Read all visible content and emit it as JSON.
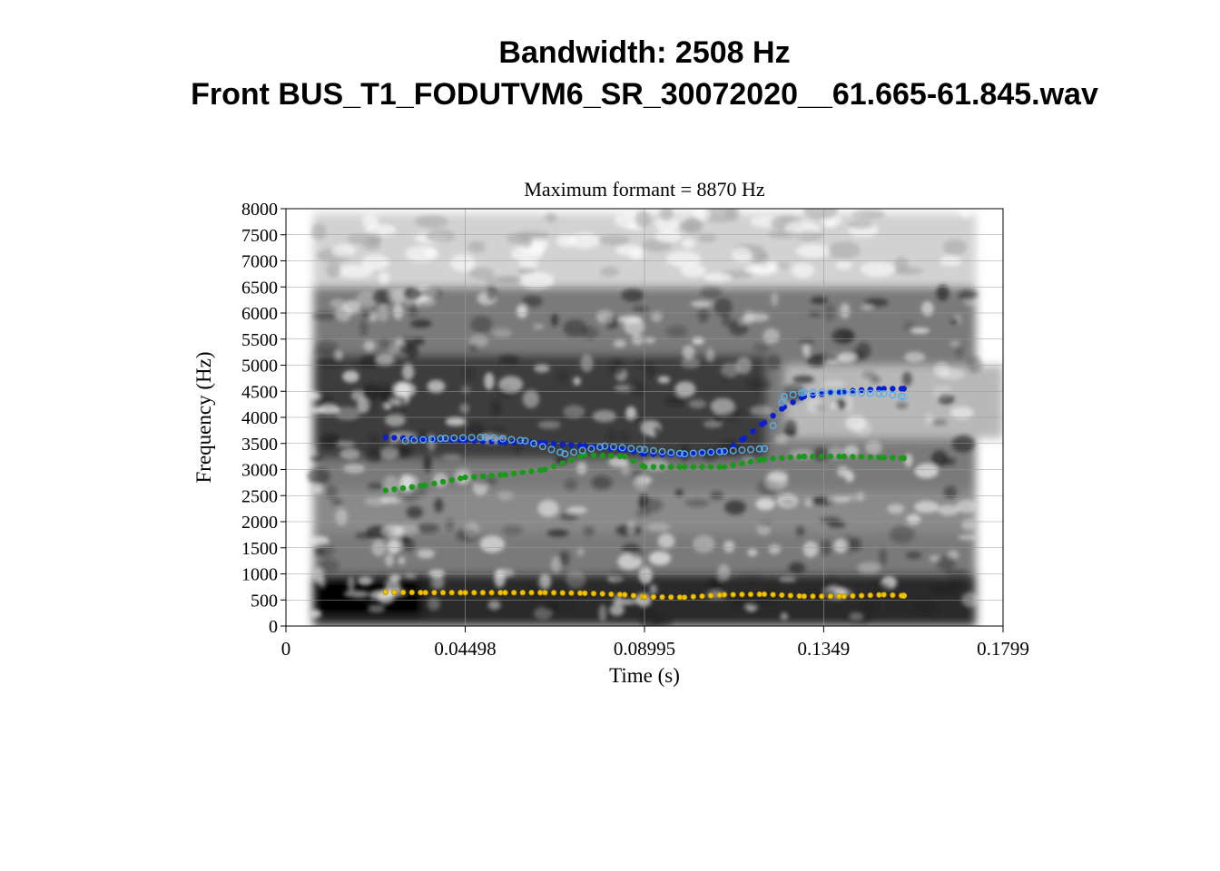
{
  "figure": {
    "title_line1": "Bandwidth: 2508 Hz",
    "title_line2": "Front BUS_T1_FODUTVM6_SR_30072020__61.665-61.845.wav"
  },
  "chart_data": {
    "type": "scatter",
    "title": "Maximum formant  =  8870 Hz",
    "xlabel": "Time (s)",
    "ylabel": "Frequency (Hz)",
    "xlim": [
      0,
      0.1799
    ],
    "ylim": [
      0,
      8000
    ],
    "x_ticks": [
      0,
      0.04498,
      0.08995,
      0.1349,
      0.1799
    ],
    "x_tick_labels": [
      "0",
      "0.04498",
      "0.08995",
      "0.1349",
      "0.1799"
    ],
    "y_ticks": [
      0,
      500,
      1000,
      1500,
      2000,
      2500,
      3000,
      3500,
      4000,
      4500,
      5000,
      5500,
      6000,
      6500,
      7000,
      7500,
      8000
    ],
    "y_tick_labels": [
      "0",
      "500",
      "1000",
      "1500",
      "2000",
      "2500",
      "3000",
      "3500",
      "4000",
      "4500",
      "5000",
      "5500",
      "6000",
      "6500",
      "7000",
      "7500",
      "8000"
    ],
    "grid": true,
    "background": "grayscale spectrogram",
    "series": [
      {
        "color": "#f2c200",
        "marker": "filled",
        "x": [
          0.025,
          0.035,
          0.045,
          0.055,
          0.065,
          0.075,
          0.085,
          0.09,
          0.1,
          0.11,
          0.12,
          0.13,
          0.14,
          0.15,
          0.155
        ],
        "y": [
          650,
          640,
          640,
          640,
          640,
          630,
          600,
          560,
          550,
          600,
          610,
          570,
          570,
          600,
          580
        ]
      },
      {
        "color": "#1a9a1a",
        "marker": "filled",
        "x": [
          0.025,
          0.035,
          0.045,
          0.055,
          0.065,
          0.075,
          0.085,
          0.09,
          0.1,
          0.11,
          0.12,
          0.13,
          0.14,
          0.15,
          0.155
        ],
        "y": [
          2600,
          2700,
          2850,
          2900,
          3000,
          3280,
          3250,
          3050,
          3050,
          3050,
          3200,
          3250,
          3250,
          3230,
          3220
        ]
      },
      {
        "color": "#0a1fd0",
        "marker": "filled",
        "x": [
          0.025,
          0.035,
          0.045,
          0.055,
          0.065,
          0.075,
          0.085,
          0.09,
          0.1,
          0.11,
          0.115,
          0.12,
          0.125,
          0.13,
          0.14,
          0.15,
          0.155
        ],
        "y": [
          3620,
          3580,
          3560,
          3520,
          3510,
          3450,
          3380,
          3300,
          3280,
          3350,
          3600,
          3900,
          4200,
          4400,
          4500,
          4550,
          4550
        ]
      },
      {
        "color": "#5aaee8",
        "marker": "open",
        "x": [
          0.03,
          0.04,
          0.05,
          0.06,
          0.07,
          0.08,
          0.09,
          0.1,
          0.11,
          0.12,
          0.125,
          0.13,
          0.14,
          0.15,
          0.155
        ],
        "y": [
          3550,
          3600,
          3620,
          3550,
          3300,
          3450,
          3380,
          3300,
          3350,
          3400,
          4400,
          4480,
          4480,
          4450,
          4400
        ]
      }
    ]
  }
}
